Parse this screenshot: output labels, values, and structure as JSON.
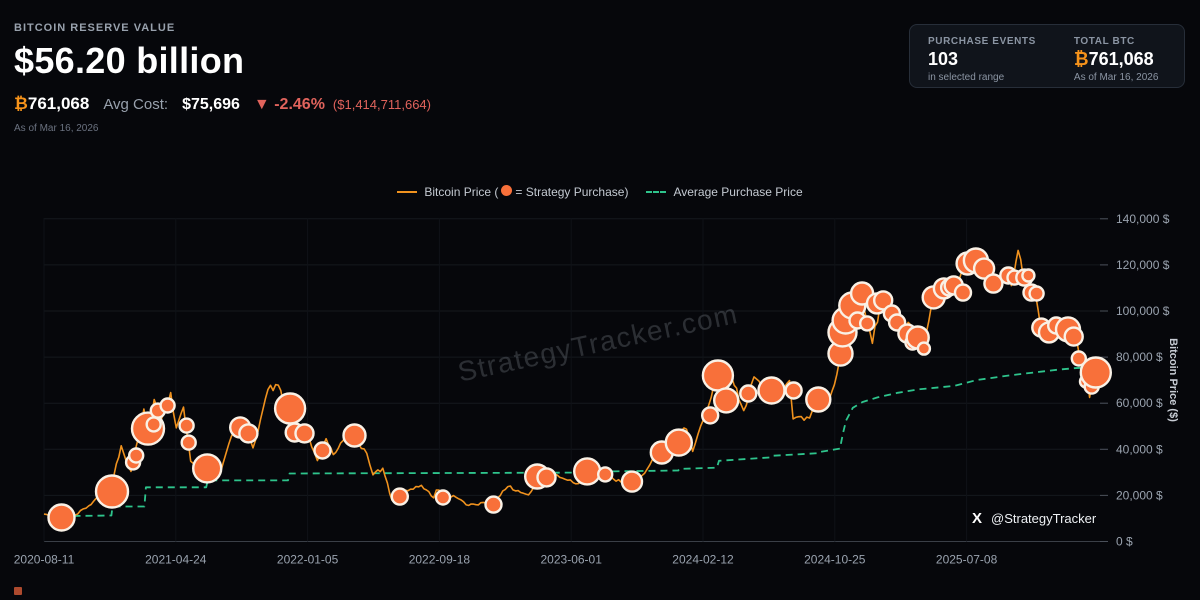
{
  "header": {
    "label": "BITCOIN RESERVE VALUE",
    "value": "$56.20 billion",
    "btc_symbol": "₿",
    "btc_amount": "761,068",
    "avg_cost_label": "Avg Cost:",
    "avg_cost_value": "$75,696",
    "change_arrow": "▼",
    "change_pct": "-2.46%",
    "change_abs": "($1,414,711,664)",
    "as_of": "As of Mar 16, 2026"
  },
  "stats_panel": {
    "purchase_events_label": "PURCHASE EVENTS",
    "purchase_events_value": "103",
    "purchase_events_sub": "in selected range",
    "total_btc_label": "TOTAL BTC",
    "total_btc_symbol": "₿",
    "total_btc_value": "761,068",
    "total_btc_sub": "As of Mar 16, 2026"
  },
  "legend": {
    "price_pre": "Bitcoin Price (",
    "price_post": "= Strategy Purchase)",
    "avg": "Average Purchase Price"
  },
  "watermark": "StrategyTracker.com",
  "attribution": {
    "x_logo": "X",
    "x_handle": "@StrategyTracker"
  },
  "colors": {
    "btc_orange": "#f7931a",
    "price_line": "#f0921e",
    "bubble_fill": "#f8703a",
    "bubble_stroke": "#f9f1e6",
    "avg_line": "#2ec48c",
    "negative": "#e0635c",
    "grid": "#15181e",
    "grid_vertical": "#0f1217",
    "axis_zero": "#3a3f47",
    "tick_text": "#9aa3af"
  },
  "chart_data": {
    "type": "line+scatter",
    "ylabel": "Bitcoin Price ($)",
    "y_tick_suffix": " $",
    "ylim": [
      0,
      140000
    ],
    "y_ticks": [
      0,
      20000,
      40000,
      60000,
      80000,
      100000,
      120000,
      140000
    ],
    "xlim": [
      "2020-08-11",
      "2026-03-16"
    ],
    "x_ticks": [
      "2020-08-11",
      "2021-04-24",
      "2022-01-05",
      "2022-09-18",
      "2023-06-01",
      "2024-02-12",
      "2024-10-25",
      "2025-07-08"
    ],
    "grid": true,
    "legend_position": "top-center",
    "price_series": [
      [
        "2020-08-11",
        11900
      ],
      [
        "2020-09-08",
        10300
      ],
      [
        "2020-10-10",
        11400
      ],
      [
        "2020-11-06",
        15500
      ],
      [
        "2020-11-24",
        19200
      ],
      [
        "2020-12-11",
        17800
      ],
      [
        "2021-01-08",
        41500
      ],
      [
        "2021-01-27",
        30400
      ],
      [
        "2021-02-21",
        57500
      ],
      [
        "2021-03-01",
        45100
      ],
      [
        "2021-03-13",
        61600
      ],
      [
        "2021-03-25",
        52200
      ],
      [
        "2021-04-14",
        64600
      ],
      [
        "2021-04-25",
        49300
      ],
      [
        "2021-05-09",
        58300
      ],
      [
        "2021-05-23",
        34800
      ],
      [
        "2021-06-08",
        33500
      ],
      [
        "2021-06-22",
        29700
      ],
      [
        "2021-07-20",
        30100
      ],
      [
        "2021-08-10",
        45600
      ],
      [
        "2021-09-06",
        52700
      ],
      [
        "2021-09-21",
        40600
      ],
      [
        "2021-10-20",
        66000
      ],
      [
        "2021-11-09",
        67800
      ],
      [
        "2021-12-04",
        49500
      ],
      [
        "2022-01-02",
        47400
      ],
      [
        "2022-01-24",
        35100
      ],
      [
        "2022-02-10",
        44600
      ],
      [
        "2022-02-24",
        37700
      ],
      [
        "2022-03-29",
        47500
      ],
      [
        "2022-04-30",
        38200
      ],
      [
        "2022-05-12",
        28900
      ],
      [
        "2022-05-31",
        31800
      ],
      [
        "2022-06-18",
        17900
      ],
      [
        "2022-07-08",
        21600
      ],
      [
        "2022-08-14",
        24400
      ],
      [
        "2022-09-07",
        18900
      ],
      [
        "2022-09-12",
        22300
      ],
      [
        "2022-10-20",
        19200
      ],
      [
        "2022-11-09",
        15900
      ],
      [
        "2022-12-17",
        16800
      ],
      [
        "2023-01-14",
        19900
      ],
      [
        "2023-01-29",
        23800
      ],
      [
        "2023-03-10",
        20200
      ],
      [
        "2023-04-14",
        30500
      ],
      [
        "2023-06-15",
        25100
      ],
      [
        "2023-07-13",
        31300
      ],
      [
        "2023-09-11",
        25200
      ],
      [
        "2023-10-16",
        28500
      ],
      [
        "2023-12-08",
        44200
      ],
      [
        "2024-01-11",
        48700
      ],
      [
        "2024-01-23",
        39100
      ],
      [
        "2024-02-28",
        62500
      ],
      [
        "2024-03-13",
        73200
      ],
      [
        "2024-03-20",
        61800
      ],
      [
        "2024-04-08",
        71200
      ],
      [
        "2024-05-01",
        56800
      ],
      [
        "2024-05-21",
        71400
      ],
      [
        "2024-06-24",
        59800
      ],
      [
        "2024-07-29",
        69800
      ],
      [
        "2024-08-05",
        53200
      ],
      [
        "2024-09-06",
        53600
      ],
      [
        "2024-09-27",
        65800
      ],
      [
        "2024-10-10",
        59100
      ],
      [
        "2024-10-29",
        72600
      ],
      [
        "2024-11-12",
        89500
      ],
      [
        "2024-11-22",
        99200
      ],
      [
        "2024-12-17",
        107800
      ],
      [
        "2024-12-30",
        93200
      ],
      [
        "2025-01-06",
        86000
      ],
      [
        "2025-01-21",
        102600
      ],
      [
        "2025-02-10",
        103900
      ],
      [
        "2025-02-23",
        95200
      ],
      [
        "2025-03-22",
        93900
      ],
      [
        "2025-04-04",
        88700
      ],
      [
        "2025-04-16",
        83900
      ],
      [
        "2025-05-05",
        105900
      ],
      [
        "2025-05-25",
        109800
      ],
      [
        "2025-06-13",
        111100
      ],
      [
        "2025-07-10",
        120600
      ],
      [
        "2025-07-26",
        122800
      ],
      [
        "2025-08-10",
        118400
      ],
      [
        "2025-08-20",
        121000
      ],
      [
        "2025-09-03",
        111900
      ],
      [
        "2025-09-17",
        116700
      ],
      [
        "2025-10-03",
        111000
      ],
      [
        "2025-10-16",
        126300
      ],
      [
        "2025-10-26",
        114500
      ],
      [
        "2025-11-07",
        108900
      ],
      [
        "2025-11-19",
        107100
      ],
      [
        "2025-11-29",
        92800
      ],
      [
        "2025-12-14",
        90700
      ],
      [
        "2025-12-28",
        95000
      ],
      [
        "2026-01-10",
        91500
      ],
      [
        "2026-01-22",
        92400
      ],
      [
        "2026-02-03",
        88500
      ],
      [
        "2026-02-13",
        79400
      ],
      [
        "2026-02-21",
        69000
      ],
      [
        "2026-02-26",
        72400
      ],
      [
        "2026-03-04",
        62500
      ],
      [
        "2026-03-09",
        68500
      ],
      [
        "2026-03-13",
        72900
      ],
      [
        "2026-03-16",
        71000
      ]
    ],
    "avg_series": [
      [
        "2020-09-14",
        11000
      ],
      [
        "2020-12-20",
        11300
      ],
      [
        "2020-12-22",
        15200
      ],
      [
        "2021-02-22",
        15200
      ],
      [
        "2021-02-25",
        23500
      ],
      [
        "2021-06-22",
        23500
      ],
      [
        "2021-06-25",
        26500
      ],
      [
        "2021-11-28",
        26500
      ],
      [
        "2021-12-01",
        29500
      ],
      [
        "2023-06-26",
        29900
      ],
      [
        "2023-06-29",
        30300
      ],
      [
        "2023-12-26",
        30800
      ],
      [
        "2023-12-28",
        31500
      ],
      [
        "2024-03-10",
        32000
      ],
      [
        "2024-03-14",
        35000
      ],
      [
        "2024-06-22",
        36500
      ],
      [
        "2024-06-25",
        37200
      ],
      [
        "2024-09-22",
        38300
      ],
      [
        "2024-09-24",
        38800
      ],
      [
        "2024-11-04",
        40300
      ],
      [
        "2024-11-10",
        47000
      ],
      [
        "2024-11-16",
        52500
      ],
      [
        "2024-11-29",
        58000
      ],
      [
        "2024-12-18",
        60500
      ],
      [
        "2025-01-16",
        62500
      ],
      [
        "2025-02-24",
        64500
      ],
      [
        "2025-04-05",
        66000
      ],
      [
        "2025-06-14",
        67500
      ],
      [
        "2025-07-27",
        70000
      ],
      [
        "2025-09-28",
        72000
      ],
      [
        "2025-11-22",
        73500
      ],
      [
        "2025-12-30",
        74500
      ],
      [
        "2026-02-02",
        75200
      ],
      [
        "2026-03-16",
        75696
      ]
    ],
    "purchases": [
      [
        "2020-09-14",
        10400,
        13
      ],
      [
        "2020-12-21",
        21700,
        16
      ],
      [
        "2021-01-31",
        34300,
        7
      ],
      [
        "2021-02-06",
        37300,
        7
      ],
      [
        "2021-03-01",
        49000,
        16
      ],
      [
        "2021-03-12",
        50800,
        7
      ],
      [
        "2021-03-20",
        56800,
        7
      ],
      [
        "2021-04-08",
        59000,
        7
      ],
      [
        "2021-05-15",
        50300,
        7
      ],
      [
        "2021-05-19",
        42900,
        7
      ],
      [
        "2021-06-24",
        31700,
        14
      ],
      [
        "2021-08-27",
        49500,
        10
      ],
      [
        "2021-09-12",
        46900,
        9
      ],
      [
        "2021-12-02",
        57700,
        15
      ],
      [
        "2021-12-11",
        47300,
        9
      ],
      [
        "2021-12-30",
        46900,
        9
      ],
      [
        "2022-02-03",
        39500,
        8
      ],
      [
        "2022-04-06",
        46000,
        11
      ],
      [
        "2022-07-03",
        19500,
        8
      ],
      [
        "2022-09-25",
        19100,
        7
      ],
      [
        "2023-01-01",
        16000,
        8
      ],
      [
        "2023-03-27",
        28200,
        12
      ],
      [
        "2023-04-14",
        27800,
        9
      ],
      [
        "2023-07-02",
        30400,
        13
      ],
      [
        "2023-08-06",
        29100,
        7
      ],
      [
        "2023-09-27",
        26000,
        10
      ],
      [
        "2023-11-24",
        38600,
        11
      ],
      [
        "2023-12-27",
        42900,
        13
      ],
      [
        "2024-02-26",
        54700,
        8
      ],
      [
        "2024-03-12",
        72000,
        15
      ],
      [
        "2024-03-28",
        61200,
        12
      ],
      [
        "2024-05-10",
        64200,
        8
      ],
      [
        "2024-06-24",
        65500,
        13
      ],
      [
        "2024-08-06",
        65500,
        8
      ],
      [
        "2024-09-23",
        61600,
        12
      ],
      [
        "2024-11-05",
        81500,
        12
      ],
      [
        "2024-11-09",
        90700,
        14
      ],
      [
        "2024-11-15",
        95900,
        13
      ],
      [
        "2024-11-28",
        102400,
        13
      ],
      [
        "2024-12-08",
        95900,
        8
      ],
      [
        "2024-12-17",
        107600,
        11
      ],
      [
        "2024-12-27",
        94600,
        7
      ],
      [
        "2025-01-15",
        103300,
        10
      ],
      [
        "2025-01-27",
        104600,
        9
      ],
      [
        "2025-02-13",
        98900,
        8
      ],
      [
        "2025-02-23",
        95000,
        8
      ],
      [
        "2025-03-15",
        90200,
        9
      ],
      [
        "2025-03-25",
        86300,
        7
      ],
      [
        "2025-04-04",
        88500,
        11
      ],
      [
        "2025-04-16",
        83700,
        6
      ],
      [
        "2025-05-05",
        105900,
        11
      ],
      [
        "2025-05-25",
        109800,
        10
      ],
      [
        "2025-06-04",
        110200,
        8
      ],
      [
        "2025-06-13",
        111100,
        9
      ],
      [
        "2025-07-01",
        108000,
        8
      ],
      [
        "2025-07-10",
        120600,
        11
      ],
      [
        "2025-07-26",
        121900,
        12
      ],
      [
        "2025-08-11",
        118400,
        10
      ],
      [
        "2025-08-29",
        111900,
        9
      ],
      [
        "2025-09-27",
        115400,
        8
      ],
      [
        "2025-10-09",
        114500,
        7
      ],
      [
        "2025-10-28",
        114500,
        8
      ],
      [
        "2025-11-05",
        115400,
        6
      ],
      [
        "2025-11-11",
        108000,
        8
      ],
      [
        "2025-11-21",
        107600,
        7
      ],
      [
        "2025-11-30",
        92800,
        9
      ],
      [
        "2025-12-15",
        90700,
        10
      ],
      [
        "2025-12-29",
        93700,
        8
      ],
      [
        "2026-01-21",
        92000,
        12
      ],
      [
        "2026-02-01",
        88900,
        9
      ],
      [
        "2026-02-11",
        79400,
        7
      ],
      [
        "2026-02-25",
        69400,
        6
      ],
      [
        "2026-03-08",
        67200,
        7
      ],
      [
        "2026-03-16",
        73300,
        15
      ]
    ]
  }
}
